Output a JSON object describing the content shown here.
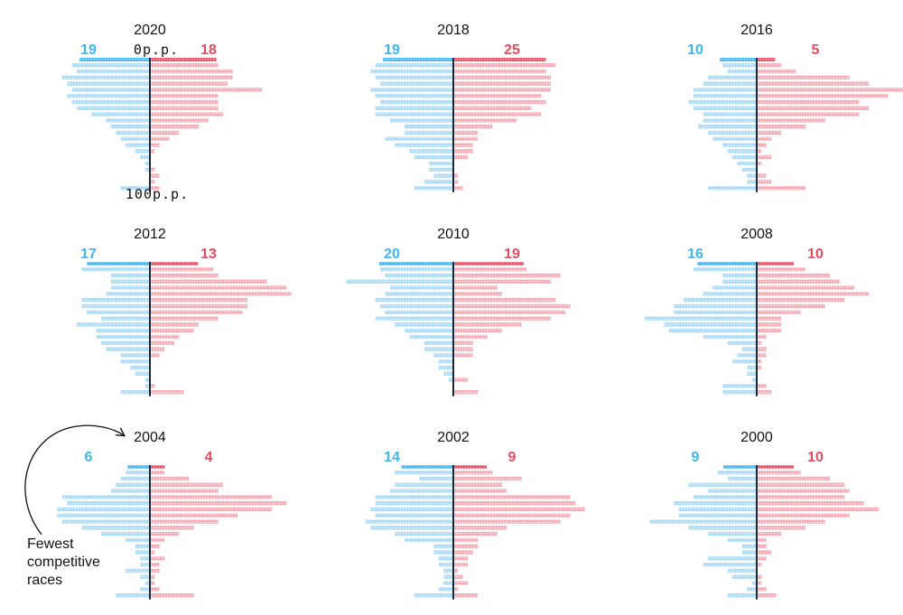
{
  "colors": {
    "dem": "#3fb6ee",
    "dem_bar": "#c5e6f8",
    "rep": "#e84a5f",
    "rep_bar": "#f8c6cc",
    "axis": "#1c2533",
    "text": "#111111"
  },
  "axis_labels": {
    "top": "0p.p.",
    "bottom": "100p.p."
  },
  "annotation": {
    "lines": [
      "Fewest",
      "competitive",
      "races"
    ]
  },
  "chart_data": [
    {
      "type": "bar",
      "title": "2020",
      "dem_total": 19,
      "rep_total": 18,
      "dem": [
        16,
        15,
        18,
        17,
        16,
        17,
        16,
        15,
        12,
        9,
        8,
        7,
        6,
        5,
        3,
        2,
        1,
        1,
        0,
        0,
        6
      ],
      "rep": [
        14,
        17,
        17,
        16,
        23,
        14,
        14,
        14,
        15,
        12,
        10,
        6,
        4,
        2,
        1,
        0,
        0,
        1,
        2,
        1,
        2
      ]
    },
    {
      "type": "bar",
      "title": "2018",
      "dem_total": 19,
      "rep_total": 25,
      "dem": [
        16,
        17,
        16,
        15,
        17,
        16,
        15,
        16,
        16,
        13,
        10,
        10,
        14,
        12,
        9,
        8,
        5,
        5,
        4,
        6,
        8
      ],
      "rep": [
        21,
        19,
        20,
        20,
        20,
        18,
        19,
        16,
        18,
        13,
        8,
        5,
        5,
        4,
        4,
        3,
        0,
        0,
        1,
        1,
        2
      ]
    },
    {
      "type": "bar",
      "title": "2016",
      "dem_total": 10,
      "rep_total": 5,
      "dem": [
        7,
        6,
        10,
        11,
        13,
        13,
        14,
        13,
        11,
        11,
        12,
        10,
        9,
        7,
        6,
        5,
        4,
        3,
        2,
        2,
        10
      ],
      "rep": [
        5,
        8,
        19,
        23,
        30,
        27,
        21,
        23,
        21,
        14,
        10,
        5,
        3,
        2,
        1,
        3,
        1,
        0,
        2,
        3,
        10
      ]
    },
    {
      "type": "bar",
      "title": "2012",
      "dem_total": 17,
      "rep_total": 13,
      "dem": [
        14,
        8,
        8,
        8,
        9,
        14,
        14,
        13,
        10,
        15,
        11,
        11,
        10,
        9,
        6,
        6,
        4,
        3,
        1,
        1,
        6
      ],
      "rep": [
        13,
        14,
        24,
        28,
        29,
        20,
        20,
        19,
        14,
        10,
        9,
        6,
        5,
        3,
        2,
        0,
        0,
        0,
        0,
        1,
        7
      ]
    },
    {
      "type": "bar",
      "title": "2010",
      "dem_total": 20,
      "rep_total": 19,
      "dem": [
        15,
        14,
        22,
        13,
        14,
        16,
        15,
        14,
        16,
        12,
        10,
        9,
        6,
        6,
        4,
        3,
        3,
        2,
        1,
        0,
        0
      ],
      "rep": [
        15,
        22,
        20,
        9,
        10,
        21,
        24,
        23,
        20,
        14,
        10,
        7,
        4,
        4,
        4,
        0,
        0,
        0,
        3,
        0,
        5
      ]
    },
    {
      "type": "bar",
      "title": "2008",
      "dem_total": 16,
      "rep_total": 10,
      "dem": [
        13,
        7,
        7,
        9,
        11,
        15,
        17,
        17,
        23,
        19,
        18,
        11,
        6,
        3,
        4,
        5,
        2,
        2,
        1,
        7,
        7
      ],
      "rep": [
        10,
        15,
        17,
        20,
        23,
        18,
        14,
        9,
        5,
        5,
        5,
        2,
        1,
        2,
        2,
        1,
        1,
        0,
        0,
        2,
        3
      ]
    },
    {
      "type": "bar",
      "title": "2004",
      "dem_total": 6,
      "rep_total": 4,
      "dem": [
        5,
        6,
        7,
        8,
        18,
        17,
        19,
        19,
        18,
        14,
        10,
        5,
        3,
        3,
        2,
        2,
        5,
        2,
        1,
        2,
        7
      ],
      "rep": [
        3,
        8,
        15,
        14,
        25,
        28,
        25,
        18,
        14,
        9,
        6,
        3,
        2,
        1,
        3,
        2,
        2,
        1,
        1,
        2,
        9
      ]
    },
    {
      "type": "bar",
      "title": "2002",
      "dem_total": 14,
      "rep_total": 9,
      "dem": [
        12,
        7,
        12,
        13,
        16,
        16,
        17,
        16,
        18,
        17,
        12,
        10,
        4,
        4,
        3,
        3,
        2,
        2,
        2,
        3,
        8
      ],
      "rep": [
        8,
        14,
        10,
        11,
        24,
        25,
        27,
        24,
        22,
        11,
        9,
        5,
        5,
        4,
        3,
        3,
        1,
        2,
        3,
        1,
        5
      ]
    },
    {
      "type": "bar",
      "title": "2000",
      "dem_total": 9,
      "rep_total": 10,
      "dem": [
        8,
        6,
        14,
        10,
        13,
        17,
        16,
        16,
        22,
        14,
        10,
        6,
        3,
        3,
        10,
        11,
        6,
        5,
        1,
        2,
        6
      ],
      "rep": [
        9,
        15,
        18,
        19,
        18,
        22,
        25,
        19,
        14,
        10,
        5,
        2,
        2,
        3,
        2,
        1,
        0,
        1,
        1,
        2,
        4
      ]
    }
  ]
}
